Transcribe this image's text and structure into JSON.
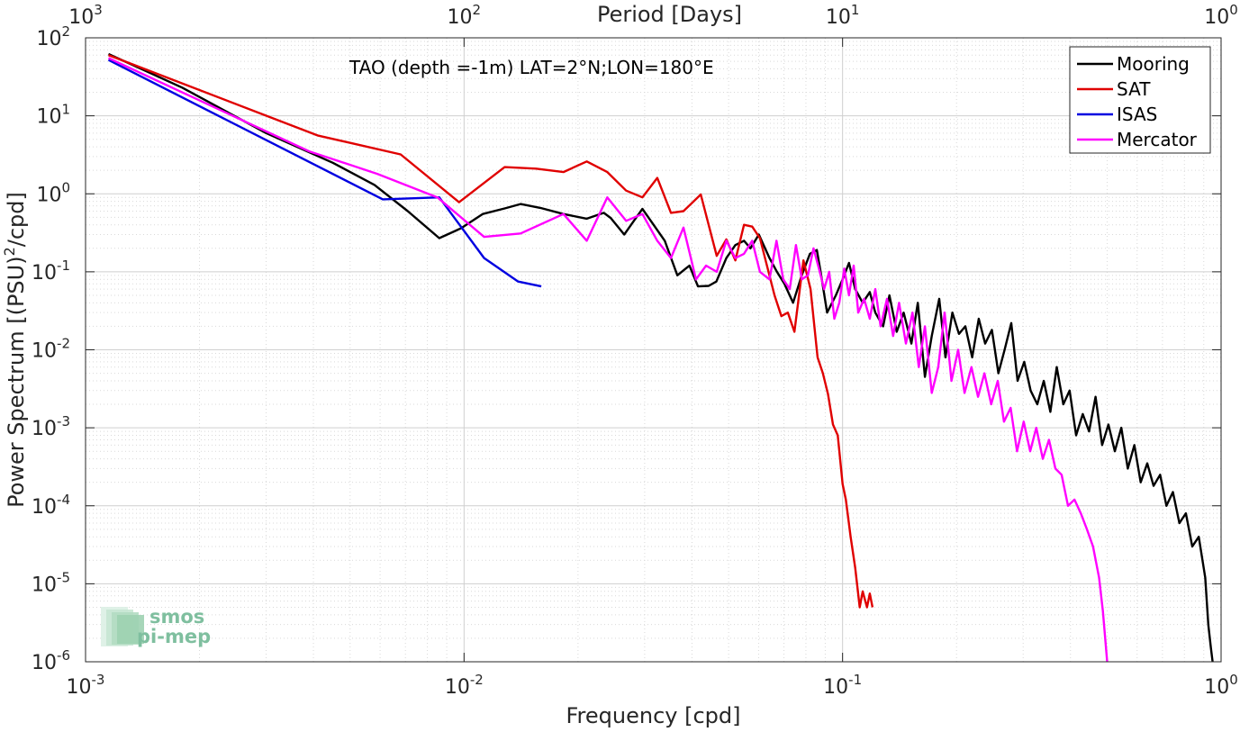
{
  "chart_data": {
    "type": "line",
    "xscale": "log",
    "yscale": "log",
    "xlim": [
      0.001,
      1
    ],
    "ylim": [
      1e-06,
      100
    ],
    "xlabel": "Frequency [cpd]",
    "ylabel": "Power Spectrum [(PSU)²/cpd]",
    "ylabel_parts": {
      "main": "Power Spectrum [(PSU)",
      "sup": "2",
      "tail": "/cpd]"
    },
    "top_axis_label": "Period [Days]",
    "annotation": "TAO (depth =-1m) LAT=2°N;LON=180°E",
    "grid": true,
    "legend_position": "top-right",
    "x_ticks": [
      {
        "value": 0.001,
        "base": "10",
        "exp": "-3"
      },
      {
        "value": 0.01,
        "base": "10",
        "exp": "-2"
      },
      {
        "value": 0.1,
        "base": "10",
        "exp": "-1"
      },
      {
        "value": 1,
        "base": "10",
        "exp": "0"
      }
    ],
    "top_ticks": [
      {
        "value": 0.001,
        "base": "10",
        "exp": "3"
      },
      {
        "value": 0.01,
        "base": "10",
        "exp": "2"
      },
      {
        "value": 0.1,
        "base": "10",
        "exp": "1"
      },
      {
        "value": 1,
        "base": "10",
        "exp": "0"
      }
    ],
    "y_ticks": [
      {
        "value": 100,
        "base": "10",
        "exp": "2"
      },
      {
        "value": 10,
        "base": "10",
        "exp": "1"
      },
      {
        "value": 1,
        "base": "10",
        "exp": "0"
      },
      {
        "value": 0.1,
        "base": "10",
        "exp": "-1"
      },
      {
        "value": 0.01,
        "base": "10",
        "exp": "-2"
      },
      {
        "value": 0.001,
        "base": "10",
        "exp": "-3"
      },
      {
        "value": 0.0001,
        "base": "10",
        "exp": "-4"
      },
      {
        "value": 1e-05,
        "base": "10",
        "exp": "-5"
      },
      {
        "value": 1e-06,
        "base": "10",
        "exp": "-6"
      }
    ],
    "series": [
      {
        "name": "Mooring",
        "color": "#000000",
        "points": [
          [
            0.00115,
            62
          ],
          [
            0.0018,
            23
          ],
          [
            0.003,
            6
          ],
          [
            0.0045,
            2.5
          ],
          [
            0.0058,
            1.3
          ],
          [
            0.0071,
            0.6
          ],
          [
            0.0086,
            0.27
          ],
          [
            0.0098,
            0.36
          ],
          [
            0.0112,
            0.55
          ],
          [
            0.0128,
            0.65
          ],
          [
            0.0141,
            0.74
          ],
          [
            0.0159,
            0.66
          ],
          [
            0.0183,
            0.55
          ],
          [
            0.0211,
            0.48
          ],
          [
            0.0234,
            0.57
          ],
          [
            0.0244,
            0.49
          ],
          [
            0.0265,
            0.3
          ],
          [
            0.0281,
            0.45
          ],
          [
            0.0296,
            0.64
          ],
          [
            0.0318,
            0.39
          ],
          [
            0.0339,
            0.25
          ],
          [
            0.0366,
            0.09
          ],
          [
            0.0394,
            0.12
          ],
          [
            0.0415,
            0.065
          ],
          [
            0.0443,
            0.066
          ],
          [
            0.0464,
            0.075
          ],
          [
            0.0493,
            0.15
          ],
          [
            0.0521,
            0.22
          ],
          [
            0.0549,
            0.25
          ],
          [
            0.0571,
            0.2
          ],
          [
            0.0601,
            0.3
          ],
          [
            0.0641,
            0.15
          ],
          [
            0.0671,
            0.1
          ],
          [
            0.0702,
            0.07
          ],
          [
            0.074,
            0.04
          ],
          [
            0.078,
            0.09
          ],
          [
            0.082,
            0.17
          ],
          [
            0.0855,
            0.19
          ],
          [
            0.0875,
            0.1
          ],
          [
            0.091,
            0.03
          ],
          [
            0.096,
            0.05
          ],
          [
            0.1,
            0.08
          ],
          [
            0.104,
            0.13
          ],
          [
            0.108,
            0.06
          ],
          [
            0.113,
            0.04
          ],
          [
            0.118,
            0.055
          ],
          [
            0.122,
            0.03
          ],
          [
            0.128,
            0.02
          ],
          [
            0.133,
            0.05
          ],
          [
            0.139,
            0.017
          ],
          [
            0.145,
            0.03
          ],
          [
            0.152,
            0.012
          ],
          [
            0.158,
            0.04
          ],
          [
            0.165,
            0.0045
          ],
          [
            0.172,
            0.015
          ],
          [
            0.18,
            0.045
          ],
          [
            0.187,
            0.008
          ],
          [
            0.195,
            0.03
          ],
          [
            0.203,
            0.016
          ],
          [
            0.211,
            0.02
          ],
          [
            0.22,
            0.008
          ],
          [
            0.229,
            0.025
          ],
          [
            0.238,
            0.012
          ],
          [
            0.248,
            0.018
          ],
          [
            0.258,
            0.005
          ],
          [
            0.268,
            0.01
          ],
          [
            0.279,
            0.022
          ],
          [
            0.29,
            0.004
          ],
          [
            0.302,
            0.007
          ],
          [
            0.314,
            0.003
          ],
          [
            0.327,
            0.002
          ],
          [
            0.34,
            0.004
          ],
          [
            0.354,
            0.0016
          ],
          [
            0.368,
            0.006
          ],
          [
            0.383,
            0.002
          ],
          [
            0.398,
            0.003
          ],
          [
            0.414,
            0.0008
          ],
          [
            0.431,
            0.0015
          ],
          [
            0.448,
            0.0009
          ],
          [
            0.466,
            0.0025
          ],
          [
            0.485,
            0.0006
          ],
          [
            0.504,
            0.0011
          ],
          [
            0.524,
            0.0005
          ],
          [
            0.545,
            0.001
          ],
          [
            0.567,
            0.0003
          ],
          [
            0.59,
            0.0006
          ],
          [
            0.613,
            0.0002
          ],
          [
            0.638,
            0.00035
          ],
          [
            0.663,
            0.00018
          ],
          [
            0.69,
            0.00025
          ],
          [
            0.717,
            0.0001
          ],
          [
            0.746,
            0.00015
          ],
          [
            0.776,
            6e-05
          ],
          [
            0.807,
            8e-05
          ],
          [
            0.839,
            3e-05
          ],
          [
            0.873,
            4e-05
          ],
          [
            0.908,
            1.2e-05
          ],
          [
            0.925,
            3e-06
          ],
          [
            0.94,
            1.5e-06
          ],
          [
            0.95,
            1e-06
          ]
        ]
      },
      {
        "name": "SAT",
        "color": "#e00000",
        "points": [
          [
            0.00115,
            60
          ],
          [
            0.0041,
            5.6
          ],
          [
            0.0068,
            3.2
          ],
          [
            0.0097,
            0.78
          ],
          [
            0.0128,
            2.2
          ],
          [
            0.0155,
            2.1
          ],
          [
            0.0183,
            1.9
          ],
          [
            0.0211,
            2.6
          ],
          [
            0.0239,
            1.9
          ],
          [
            0.0268,
            1.1
          ],
          [
            0.0296,
            0.9
          ],
          [
            0.0324,
            1.6
          ],
          [
            0.0352,
            0.57
          ],
          [
            0.038,
            0.6
          ],
          [
            0.0422,
            0.98
          ],
          [
            0.0465,
            0.16
          ],
          [
            0.0493,
            0.26
          ],
          [
            0.0521,
            0.14
          ],
          [
            0.0549,
            0.4
          ],
          [
            0.0577,
            0.38
          ],
          [
            0.0605,
            0.27
          ],
          [
            0.0661,
            0.05
          ],
          [
            0.0689,
            0.027
          ],
          [
            0.0717,
            0.03
          ],
          [
            0.0746,
            0.017
          ],
          [
            0.0788,
            0.14
          ],
          [
            0.0823,
            0.06
          ],
          [
            0.0859,
            0.008
          ],
          [
            0.0887,
            0.005
          ],
          [
            0.0915,
            0.0027
          ],
          [
            0.0943,
            0.0011
          ],
          [
            0.0971,
            0.0008
          ],
          [
            0.1,
            0.00019
          ],
          [
            0.102,
            0.00012
          ],
          [
            0.105,
            4e-05
          ],
          [
            0.108,
            1.6e-05
          ],
          [
            0.111,
            5e-06
          ],
          [
            0.113,
            8e-06
          ],
          [
            0.116,
            5e-06
          ],
          [
            0.118,
            7.5e-06
          ],
          [
            0.12,
            5e-06
          ]
        ]
      },
      {
        "name": "ISAS",
        "color": "#0000e0",
        "points": [
          [
            0.00115,
            52
          ],
          [
            0.0061,
            0.85
          ],
          [
            0.0086,
            0.9
          ],
          [
            0.0113,
            0.15
          ],
          [
            0.0139,
            0.075
          ],
          [
            0.016,
            0.065
          ]
        ]
      },
      {
        "name": "Mercator",
        "color": "#ff00ff",
        "points": [
          [
            0.00115,
            55
          ],
          [
            0.0039,
            3.5
          ],
          [
            0.0059,
            1.8
          ],
          [
            0.0085,
            0.9
          ],
          [
            0.0113,
            0.28
          ],
          [
            0.0141,
            0.31
          ],
          [
            0.0183,
            0.55
          ],
          [
            0.0211,
            0.25
          ],
          [
            0.0239,
            0.9
          ],
          [
            0.0268,
            0.45
          ],
          [
            0.0296,
            0.55
          ],
          [
            0.0324,
            0.25
          ],
          [
            0.0352,
            0.15
          ],
          [
            0.038,
            0.37
          ],
          [
            0.041,
            0.08
          ],
          [
            0.0436,
            0.12
          ],
          [
            0.0465,
            0.1
          ],
          [
            0.0493,
            0.25
          ],
          [
            0.0521,
            0.15
          ],
          [
            0.0549,
            0.17
          ],
          [
            0.0577,
            0.25
          ],
          [
            0.0605,
            0.1
          ],
          [
            0.0641,
            0.08
          ],
          [
            0.0669,
            0.25
          ],
          [
            0.0697,
            0.08
          ],
          [
            0.0725,
            0.06
          ],
          [
            0.0753,
            0.22
          ],
          [
            0.0781,
            0.08
          ],
          [
            0.081,
            0.09
          ],
          [
            0.0838,
            0.2
          ],
          [
            0.0866,
            0.11
          ],
          [
            0.0894,
            0.06
          ],
          [
            0.0922,
            0.1
          ],
          [
            0.0951,
            0.025
          ],
          [
            0.098,
            0.04
          ],
          [
            0.101,
            0.11
          ],
          [
            0.104,
            0.05
          ],
          [
            0.107,
            0.12
          ],
          [
            0.11,
            0.03
          ],
          [
            0.114,
            0.045
          ],
          [
            0.118,
            0.025
          ],
          [
            0.122,
            0.06
          ],
          [
            0.126,
            0.02
          ],
          [
            0.131,
            0.045
          ],
          [
            0.136,
            0.015
          ],
          [
            0.141,
            0.04
          ],
          [
            0.147,
            0.012
          ],
          [
            0.153,
            0.03
          ],
          [
            0.159,
            0.006
          ],
          [
            0.165,
            0.02
          ],
          [
            0.172,
            0.0028
          ],
          [
            0.179,
            0.006
          ],
          [
            0.186,
            0.03
          ],
          [
            0.194,
            0.004
          ],
          [
            0.202,
            0.01
          ],
          [
            0.21,
            0.0028
          ],
          [
            0.219,
            0.006
          ],
          [
            0.228,
            0.0025
          ],
          [
            0.237,
            0.005
          ],
          [
            0.247,
            0.002
          ],
          [
            0.257,
            0.004
          ],
          [
            0.267,
            0.0012
          ],
          [
            0.278,
            0.0018
          ],
          [
            0.289,
            0.0005
          ],
          [
            0.301,
            0.0012
          ],
          [
            0.313,
            0.0005
          ],
          [
            0.325,
            0.001
          ],
          [
            0.338,
            0.0004
          ],
          [
            0.351,
            0.0007
          ],
          [
            0.365,
            0.0003
          ],
          [
            0.379,
            0.00025
          ],
          [
            0.394,
            0.0001
          ],
          [
            0.41,
            0.00012
          ],
          [
            0.426,
            8e-05
          ],
          [
            0.442,
            5e-05
          ],
          [
            0.459,
            3e-05
          ],
          [
            0.476,
            1.2e-05
          ],
          [
            0.487,
            4.5e-06
          ],
          [
            0.5,
            1e-06
          ]
        ]
      }
    ]
  },
  "logo": {
    "line1": "smos",
    "line2": "pi-mep"
  }
}
